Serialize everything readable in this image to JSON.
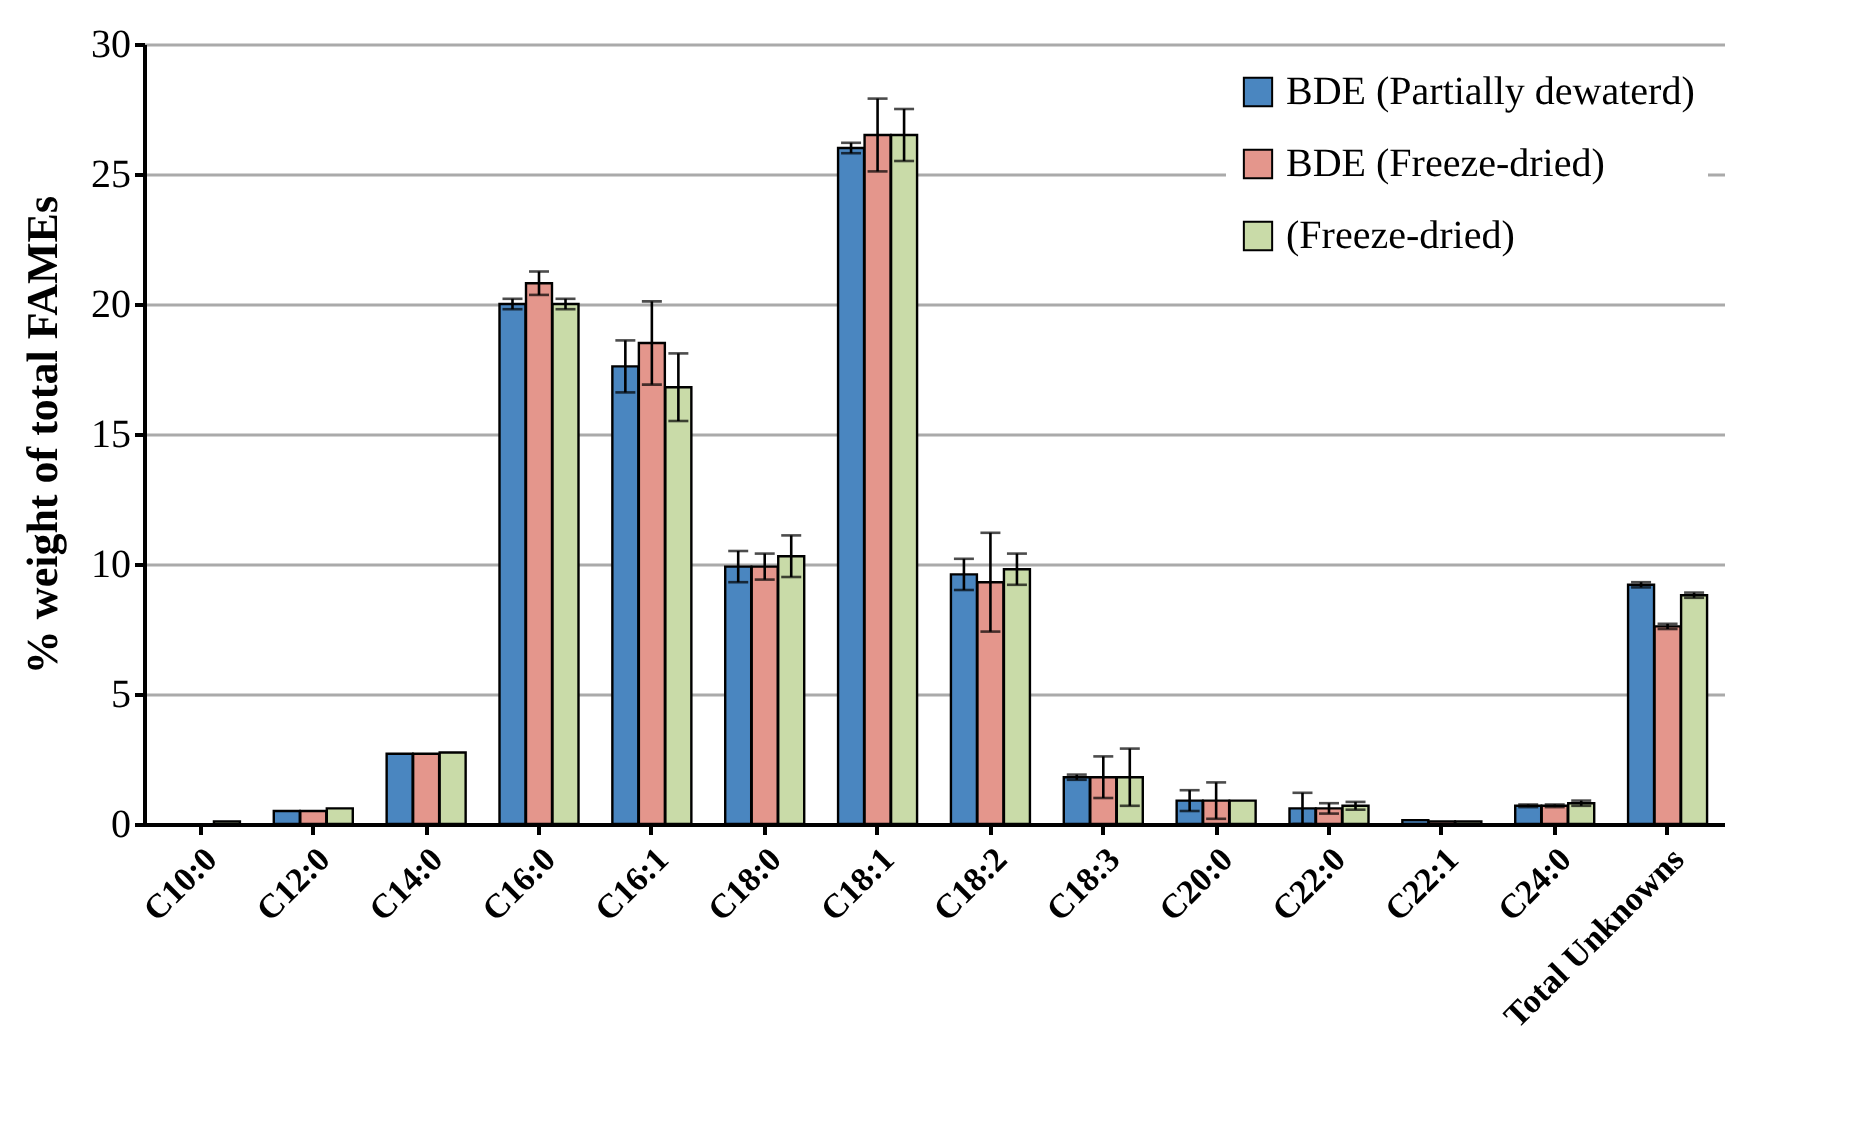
{
  "chart_data": {
    "type": "bar",
    "ylabel": "% weight of total FAMEs",
    "categories": [
      "C10:0",
      "C12:0",
      "C14:0",
      "C16:0",
      "C16:1",
      "C18:0",
      "C18:1",
      "C18:2",
      "C18:3",
      "C20:0",
      "C22:0",
      "C22:1",
      "C24:0",
      "Total Unknowns"
    ],
    "series": [
      {
        "name": "BDE (Partially dewaterd)",
        "color": "#4a86c0",
        "values": [
          null,
          0.5,
          2.7,
          20.0,
          17.6,
          9.9,
          26.0,
          9.6,
          1.8,
          0.9,
          0.6,
          0.15,
          0.7,
          9.2
        ],
        "errors": [
          null,
          null,
          null,
          0.2,
          1.0,
          0.6,
          0.2,
          0.6,
          0.1,
          0.4,
          0.6,
          null,
          0.05,
          0.1
        ]
      },
      {
        "name": "BDE (Freeze-dried)",
        "color": "#e4968c",
        "values": [
          null,
          0.5,
          2.7,
          20.8,
          18.5,
          9.9,
          26.5,
          9.3,
          1.8,
          0.9,
          0.6,
          0.1,
          0.7,
          7.6
        ],
        "errors": [
          null,
          null,
          null,
          0.45,
          1.6,
          0.5,
          1.4,
          1.9,
          0.8,
          0.7,
          0.2,
          null,
          0.05,
          0.1
        ]
      },
      {
        "name": "(Freeze-dried)",
        "color": "#c9dba8",
        "values": [
          0.1,
          0.6,
          2.75,
          20.0,
          16.8,
          10.3,
          26.5,
          9.8,
          1.8,
          0.9,
          0.7,
          0.1,
          0.8,
          8.8
        ],
        "errors": [
          null,
          null,
          null,
          0.2,
          1.3,
          0.8,
          1.0,
          0.6,
          1.1,
          null,
          0.15,
          null,
          0.1,
          0.1
        ]
      }
    ],
    "ylim": [
      0,
      30
    ],
    "yticks": [
      0,
      5,
      10,
      15,
      20,
      25,
      30
    ],
    "grid": "y",
    "legend": "top right"
  }
}
